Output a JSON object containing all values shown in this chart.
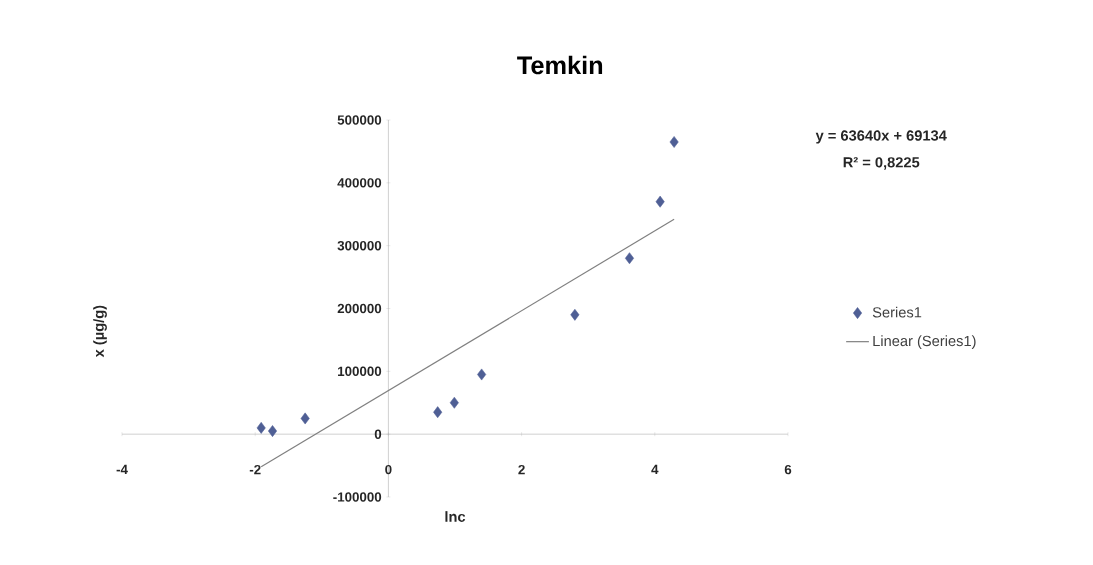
{
  "chart_data": {
    "type": "scatter",
    "title": "Temkin",
    "xlabel": "lnc",
    "ylabel": "x (µg/g)",
    "xlim": [
      -4,
      6
    ],
    "xticks": [
      -4,
      -2,
      0,
      2,
      4,
      6
    ],
    "ylim": [
      -100000,
      500000
    ],
    "yticks": [
      -100000,
      0,
      100000,
      200000,
      300000,
      400000,
      500000
    ],
    "legend": "right",
    "annotations": [
      "y = 63640x + 69134",
      "R² = 0,8225"
    ],
    "series": [
      {
        "name": "Series1",
        "marker": "diamond",
        "color": "#4f5f95",
        "x": [
          -1.91,
          -1.74,
          -1.25,
          0.74,
          0.99,
          1.4,
          2.8,
          3.62,
          4.08,
          4.29
        ],
        "values": [
          10000,
          5000,
          25000,
          35000,
          50000,
          95000,
          190000,
          280000,
          370000,
          465000
        ]
      },
      {
        "name": "Linear (Series1)",
        "type": "line",
        "marker": "none",
        "color": "#808080",
        "x": [
          -1.91,
          4.29
        ],
        "values": [
          -52000,
          342000
        ]
      }
    ]
  }
}
